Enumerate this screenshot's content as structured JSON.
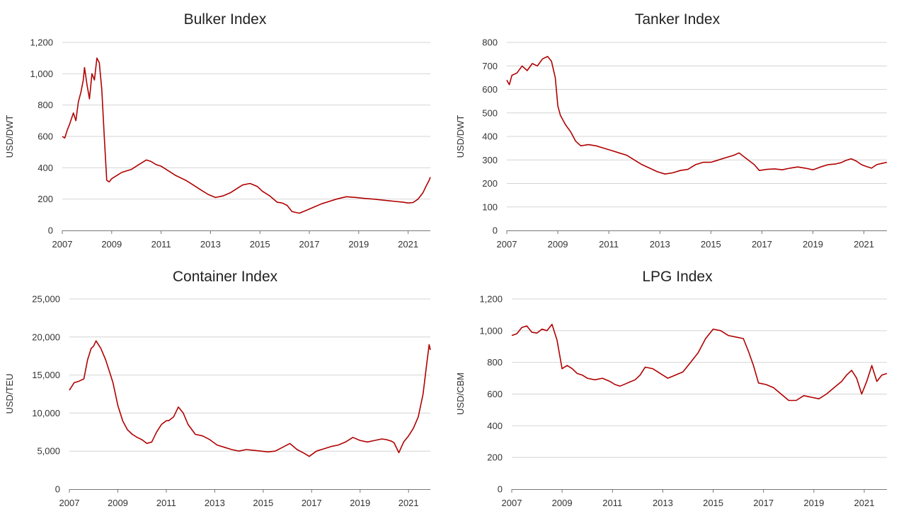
{
  "chart_data": [
    {
      "type": "line",
      "title": "Bulker Index",
      "ylabel": "USD/DWT",
      "ylim": [
        0,
        1200
      ],
      "yticks": [
        0,
        200,
        400,
        600,
        800,
        1000,
        1200
      ],
      "ytick_labels": [
        "0",
        "200",
        "400",
        "600",
        "800",
        "1,000",
        "1,200"
      ],
      "xlim": [
        2007,
        2021.9
      ],
      "xticks": [
        2007,
        2009,
        2011,
        2013,
        2015,
        2017,
        2019,
        2021
      ],
      "xtick_labels": [
        "2007",
        "2009",
        "2011",
        "2013",
        "2015",
        "2017",
        "2019",
        "2021"
      ],
      "grid": true,
      "color": "#b00000",
      "x": [
        2007.0,
        2007.1,
        2007.2,
        2007.3,
        2007.45,
        2007.55,
        2007.65,
        2007.75,
        2007.85,
        2007.9,
        2008.0,
        2008.1,
        2008.2,
        2008.3,
        2008.4,
        2008.5,
        2008.6,
        2008.7,
        2008.8,
        2008.9,
        2009.0,
        2009.2,
        2009.4,
        2009.6,
        2009.8,
        2010.0,
        2010.2,
        2010.4,
        2010.6,
        2010.8,
        2011.0,
        2011.3,
        2011.6,
        2012.0,
        2012.3,
        2012.6,
        2012.9,
        2013.2,
        2013.5,
        2013.8,
        2014.1,
        2014.3,
        2014.6,
        2014.9,
        2015.1,
        2015.4,
        2015.7,
        2015.9,
        2016.1,
        2016.3,
        2016.6,
        2016.9,
        2017.2,
        2017.5,
        2017.8,
        2018.1,
        2018.5,
        2018.9,
        2019.2,
        2019.6,
        2019.9,
        2020.2,
        2020.5,
        2020.8,
        2021.0,
        2021.2,
        2021.4,
        2021.6,
        2021.75,
        2021.85,
        2021.9
      ],
      "y": [
        600,
        590,
        640,
        680,
        750,
        700,
        820,
        880,
        960,
        1040,
        930,
        840,
        1000,
        960,
        1100,
        1070,
        900,
        600,
        320,
        310,
        330,
        350,
        370,
        380,
        390,
        410,
        430,
        450,
        440,
        420,
        410,
        380,
        350,
        320,
        290,
        260,
        230,
        210,
        220,
        240,
        270,
        290,
        300,
        280,
        250,
        220,
        180,
        175,
        160,
        120,
        110,
        130,
        150,
        170,
        185,
        200,
        215,
        210,
        205,
        200,
        195,
        190,
        185,
        180,
        175,
        178,
        200,
        240,
        290,
        320,
        340
      ]
    },
    {
      "type": "line",
      "title": "Tanker Index",
      "ylabel": "USD/DWT",
      "ylim": [
        0,
        800
      ],
      "yticks": [
        0,
        100,
        200,
        300,
        400,
        500,
        600,
        700,
        800
      ],
      "ytick_labels": [
        "0",
        "100",
        "200",
        "300",
        "400",
        "500",
        "600",
        "700",
        "800"
      ],
      "xlim": [
        2007,
        2021.9
      ],
      "xticks": [
        2007,
        2009,
        2011,
        2013,
        2015,
        2017,
        2019,
        2021
      ],
      "xtick_labels": [
        "2007",
        "2009",
        "2011",
        "2013",
        "2015",
        "2017",
        "2019",
        "2021"
      ],
      "grid": true,
      "color": "#b00000",
      "x": [
        2007.0,
        2007.1,
        2007.2,
        2007.4,
        2007.6,
        2007.8,
        2008.0,
        2008.2,
        2008.4,
        2008.6,
        2008.75,
        2008.9,
        2009.0,
        2009.1,
        2009.3,
        2009.5,
        2009.7,
        2009.9,
        2010.2,
        2010.5,
        2010.8,
        2011.1,
        2011.4,
        2011.7,
        2012.0,
        2012.3,
        2012.6,
        2012.9,
        2013.2,
        2013.5,
        2013.8,
        2014.1,
        2014.4,
        2014.7,
        2015.0,
        2015.3,
        2015.6,
        2015.9,
        2016.1,
        2016.4,
        2016.7,
        2016.9,
        2017.2,
        2017.5,
        2017.8,
        2018.1,
        2018.4,
        2018.7,
        2019.0,
        2019.3,
        2019.6,
        2019.9,
        2020.1,
        2020.3,
        2020.5,
        2020.7,
        2020.9,
        2021.1,
        2021.3,
        2021.5,
        2021.7,
        2021.9
      ],
      "y": [
        640,
        620,
        660,
        670,
        700,
        680,
        710,
        700,
        730,
        740,
        720,
        650,
        530,
        490,
        450,
        420,
        380,
        360,
        365,
        360,
        350,
        340,
        330,
        320,
        300,
        280,
        265,
        250,
        240,
        245,
        255,
        260,
        280,
        290,
        290,
        300,
        310,
        320,
        330,
        305,
        280,
        255,
        260,
        262,
        258,
        265,
        270,
        265,
        258,
        270,
        280,
        283,
        288,
        298,
        305,
        295,
        280,
        272,
        265,
        280,
        285,
        290
      ]
    },
    {
      "type": "line",
      "title": "Container Index",
      "ylabel": "USD/TEU",
      "ylim": [
        0,
        25000
      ],
      "yticks": [
        0,
        5000,
        10000,
        15000,
        20000,
        25000
      ],
      "ytick_labels": [
        "0",
        "5,000",
        "10,000",
        "15,000",
        "20,000",
        "25,000"
      ],
      "xlim": [
        2007,
        2021.9
      ],
      "xticks": [
        2007,
        2009,
        2011,
        2013,
        2015,
        2017,
        2019,
        2021
      ],
      "xtick_labels": [
        "2007",
        "2009",
        "2011",
        "2013",
        "2015",
        "2017",
        "2019",
        "2021"
      ],
      "grid": true,
      "color": "#b00000",
      "x": [
        2007.0,
        2007.1,
        2007.2,
        2007.4,
        2007.6,
        2007.75,
        2007.9,
        2008.0,
        2008.1,
        2008.3,
        2008.5,
        2008.65,
        2008.8,
        2009.0,
        2009.2,
        2009.4,
        2009.6,
        2009.8,
        2010.0,
        2010.2,
        2010.4,
        2010.6,
        2010.8,
        2011.0,
        2011.1,
        2011.3,
        2011.5,
        2011.7,
        2011.9,
        2012.2,
        2012.5,
        2012.8,
        2013.1,
        2013.4,
        2013.7,
        2014.0,
        2014.3,
        2014.6,
        2014.9,
        2015.2,
        2015.5,
        2015.8,
        2016.1,
        2016.4,
        2016.7,
        2016.9,
        2017.2,
        2017.5,
        2017.8,
        2018.1,
        2018.4,
        2018.7,
        2019.0,
        2019.3,
        2019.6,
        2019.9,
        2020.1,
        2020.3,
        2020.4,
        2020.6,
        2020.8,
        2021.0,
        2021.2,
        2021.4,
        2021.6,
        2021.75,
        2021.85,
        2021.9
      ],
      "y": [
        13000,
        13500,
        14000,
        14200,
        14500,
        17000,
        18500,
        18800,
        19500,
        18500,
        17000,
        15500,
        14000,
        11000,
        9000,
        7800,
        7200,
        6800,
        6500,
        6000,
        6200,
        7500,
        8500,
        9000,
        9000,
        9500,
        10800,
        10000,
        8500,
        7200,
        7000,
        6500,
        5800,
        5500,
        5200,
        5000,
        5200,
        5100,
        5000,
        4900,
        5000,
        5500,
        6000,
        5200,
        4700,
        4300,
        5000,
        5300,
        5600,
        5800,
        6200,
        6800,
        6400,
        6200,
        6400,
        6600,
        6500,
        6300,
        6100,
        4800,
        6200,
        7000,
        8000,
        9500,
        12500,
        16500,
        19000,
        18300
      ]
    },
    {
      "type": "line",
      "title": "LPG Index",
      "ylabel": "USD/CBM",
      "ylim": [
        0,
        1200
      ],
      "yticks": [
        0,
        200,
        400,
        600,
        800,
        1000,
        1200
      ],
      "ytick_labels": [
        "0",
        "200",
        "400",
        "600",
        "800",
        "1,000",
        "1,200"
      ],
      "xlim": [
        2007,
        2021.9
      ],
      "xticks": [
        2007,
        2009,
        2011,
        2013,
        2015,
        2017,
        2019,
        2021
      ],
      "xtick_labels": [
        "2007",
        "2009",
        "2011",
        "2013",
        "2015",
        "2017",
        "2019",
        "2021"
      ],
      "grid": true,
      "color": "#b00000",
      "x": [
        2007.0,
        2007.2,
        2007.4,
        2007.6,
        2007.8,
        2008.0,
        2008.2,
        2008.4,
        2008.6,
        2008.8,
        2009.0,
        2009.2,
        2009.4,
        2009.6,
        2009.8,
        2010.0,
        2010.3,
        2010.6,
        2010.9,
        2011.1,
        2011.3,
        2011.6,
        2011.9,
        2012.1,
        2012.3,
        2012.6,
        2012.9,
        2013.2,
        2013.5,
        2013.8,
        2014.1,
        2014.4,
        2014.7,
        2015.0,
        2015.3,
        2015.6,
        2015.9,
        2016.2,
        2016.4,
        2016.6,
        2016.8,
        2017.1,
        2017.4,
        2017.7,
        2018.0,
        2018.3,
        2018.6,
        2018.9,
        2019.2,
        2019.5,
        2019.8,
        2020.1,
        2020.3,
        2020.5,
        2020.7,
        2020.9,
        2021.1,
        2021.3,
        2021.5,
        2021.7,
        2021.9
      ],
      "y": [
        970,
        980,
        1020,
        1030,
        990,
        985,
        1010,
        1000,
        1040,
        940,
        760,
        780,
        760,
        730,
        720,
        700,
        690,
        700,
        680,
        660,
        650,
        670,
        690,
        720,
        770,
        760,
        730,
        700,
        720,
        740,
        800,
        860,
        950,
        1010,
        1000,
        970,
        960,
        950,
        870,
        780,
        670,
        660,
        640,
        600,
        560,
        560,
        590,
        580,
        570,
        600,
        640,
        680,
        720,
        750,
        700,
        600,
        680,
        780,
        680,
        720,
        730
      ]
    }
  ]
}
